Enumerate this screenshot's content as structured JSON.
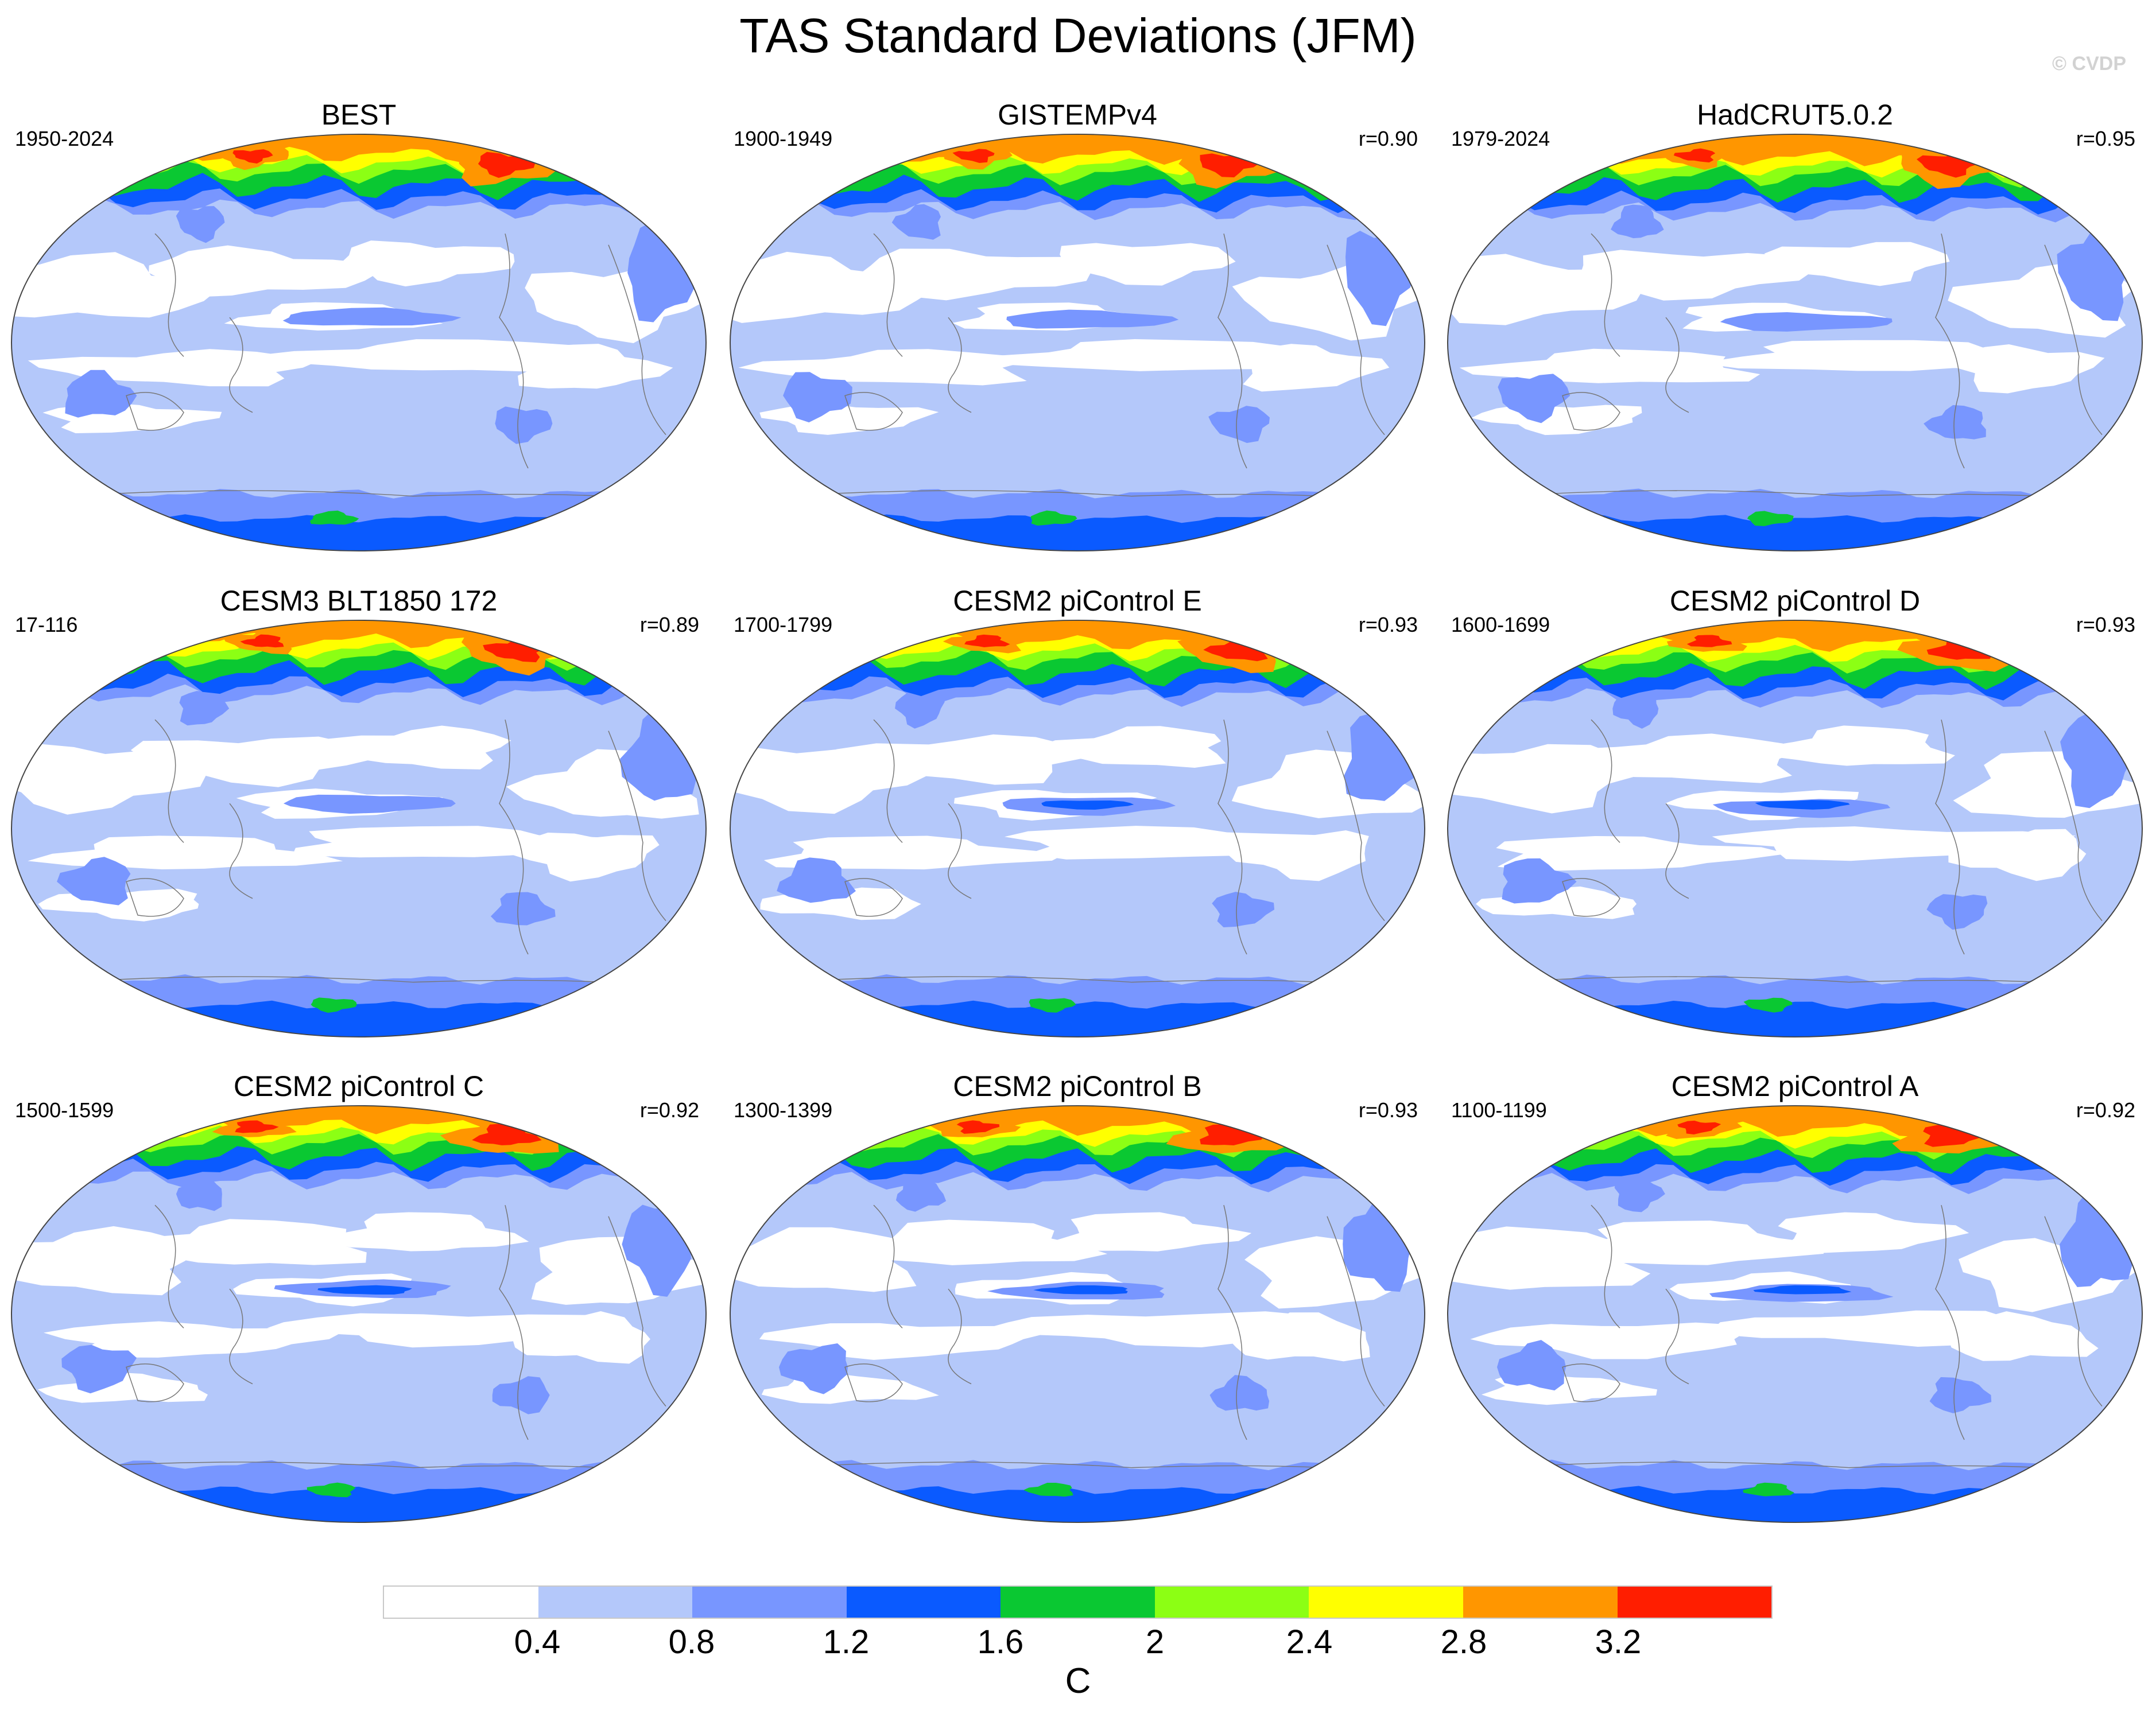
{
  "figure": {
    "title": "TAS Standard Deviations (JFM)",
    "watermark": "© CVDP"
  },
  "panels": [
    {
      "name": "BEST",
      "period": "1950-2024",
      "corr": "",
      "variant": 0
    },
    {
      "name": "GISTEMPv4",
      "period": "1900-1949",
      "corr": "r=0.90",
      "variant": 1
    },
    {
      "name": "HadCRUT5.0.2",
      "period": "1979-2024",
      "corr": "r=0.95",
      "variant": 2
    },
    {
      "name": "CESM3 BLT1850 172",
      "period": "17-116",
      "corr": "r=0.89",
      "variant": 3
    },
    {
      "name": "CESM2 piControl E",
      "period": "1700-1799",
      "corr": "r=0.93",
      "variant": 4
    },
    {
      "name": "CESM2 piControl D",
      "period": "1600-1699",
      "corr": "r=0.93",
      "variant": 5
    },
    {
      "name": "CESM2 piControl C",
      "period": "1500-1599",
      "corr": "r=0.92",
      "variant": 6
    },
    {
      "name": "CESM2 piControl B",
      "period": "1300-1399",
      "corr": "r=0.93",
      "variant": 7
    },
    {
      "name": "CESM2 piControl A",
      "period": "1100-1199",
      "corr": "r=0.92",
      "variant": 8
    }
  ],
  "colorbar": {
    "unit": "C",
    "levels": [
      "0.4",
      "0.8",
      "1.2",
      "1.6",
      "2",
      "2.4",
      "2.8",
      "3.2"
    ],
    "colors": [
      "#ffffff",
      "#b4c8fa",
      "#7896ff",
      "#0a5aff",
      "#0ac832",
      "#8cff14",
      "#ffff00",
      "#ff9600",
      "#ff1e00"
    ]
  }
}
